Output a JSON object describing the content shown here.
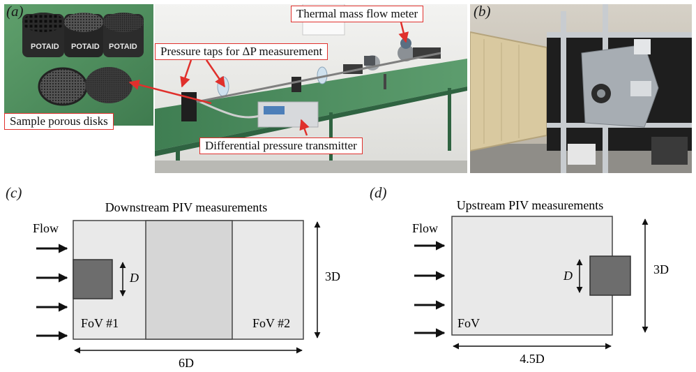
{
  "panels": {
    "a": {
      "label": "(a)",
      "callouts": {
        "flow_meter": "Thermal mass flow meter",
        "pressure_taps": "Pressure taps for ΔP measurement",
        "porous_disks": "Sample porous disks",
        "transmitter": "Differential pressure transmitter"
      },
      "disk_stamp": "POTAID"
    },
    "b": {
      "label": "(b)"
    },
    "c": {
      "label": "(c)",
      "title": "Downstream PIV measurements",
      "flow": "Flow",
      "size_label": "D",
      "fov_1": "FoV #1",
      "fov_2": "FoV #2",
      "width_label": "6D",
      "height_label": "3D"
    },
    "d": {
      "label": "(d)",
      "title": "Upstream PIV measurements",
      "flow": "Flow",
      "size_label": "D",
      "fov": "FoV",
      "width_label": "4.5D",
      "height_label": "3D"
    }
  },
  "colors": {
    "callout_border": "#e0302c",
    "fov_fill": "#e9e9e9",
    "fov_shaded": "#d6d6d6",
    "cylinder_fill": "#6d6d6d",
    "table_green": "#4e8a5e",
    "tunnel_frame": "#9aa0a6"
  }
}
